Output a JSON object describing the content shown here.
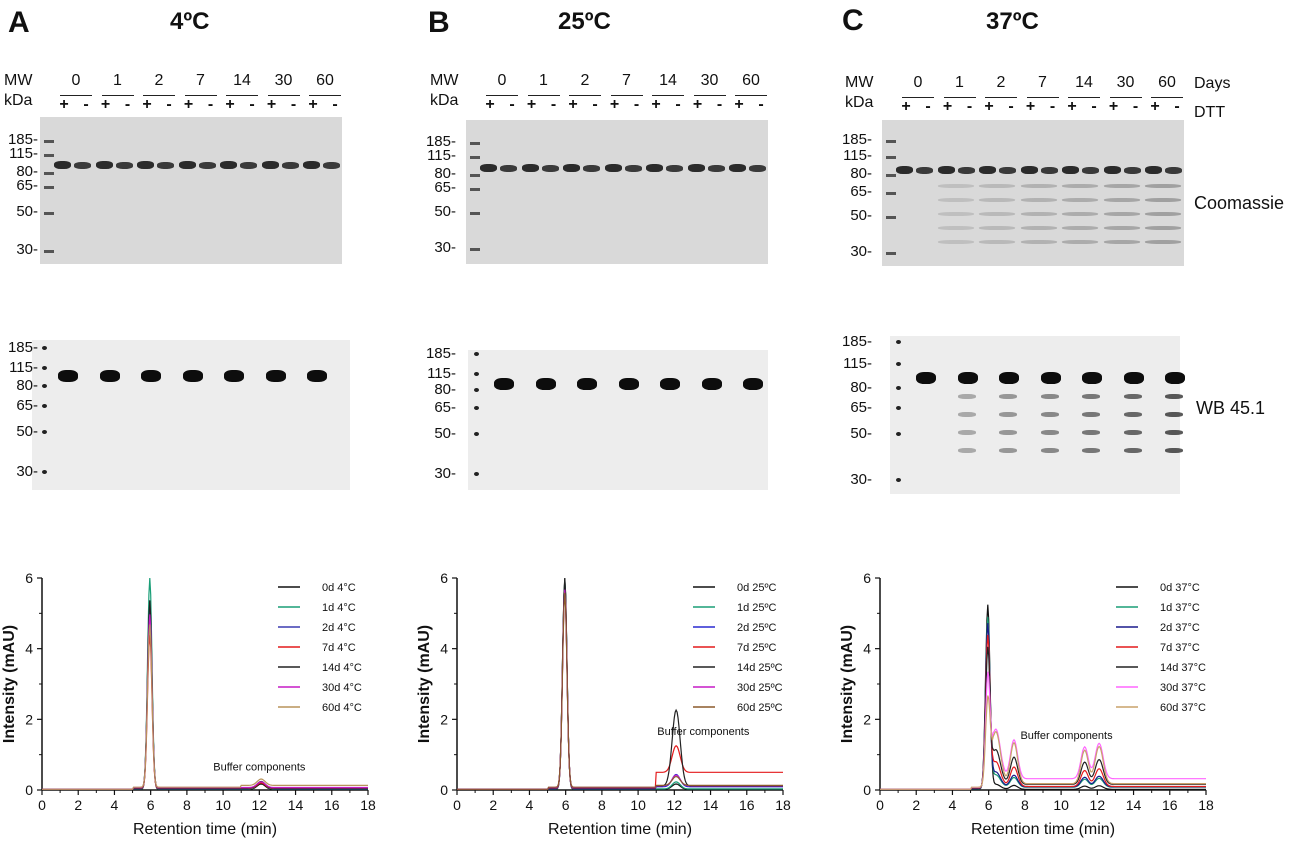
{
  "panels": [
    {
      "letter": "A",
      "temp": "4ºC",
      "mw_top": [
        "185-",
        "115-",
        "80-",
        "65-",
        "50-",
        "30-"
      ],
      "mw_wb": [
        "185-",
        "115-",
        "80-",
        "65-",
        "50-",
        "30-"
      ],
      "chart": {
        "type": "line",
        "title": "",
        "xlabel": "Retention time (min)",
        "ylabel": "Intensity (mAU)",
        "xlim": [
          0,
          18
        ],
        "ylim": [
          0,
          6
        ],
        "xticks": [
          "0",
          "2",
          "4",
          "6",
          "8",
          "10",
          "12",
          "14",
          "16",
          "18"
        ],
        "yticks": [
          "0",
          "2",
          "4",
          "6"
        ],
        "annotation": "Buffer components",
        "series": [
          {
            "name": "0d 4°C",
            "color": "#111111",
            "peak": 5.35,
            "late": 0.15,
            "tail": 0.0
          },
          {
            "name": "1d 4°C",
            "color": "#1a9e77",
            "peak": 6.0,
            "late": 0.2,
            "tail": 0.0
          },
          {
            "name": "2d 4°C",
            "color": "#3b3bb0",
            "peak": 5.2,
            "late": 0.2,
            "tail": 0.0
          },
          {
            "name": "7d 4°C",
            "color": "#e41a1c",
            "peak": 4.35,
            "late": 0.15,
            "tail": 0.0
          },
          {
            "name": "14d 4°C",
            "color": "#222222",
            "peak": 5.3,
            "late": 0.18,
            "tail": 0.0
          },
          {
            "name": "30d 4°C",
            "color": "#c51bc5",
            "peak": 4.9,
            "late": 0.16,
            "tail": 0.0
          },
          {
            "name": "60d 4°C",
            "color": "#b8935a",
            "peak": 4.6,
            "late": 0.18,
            "tail": 0.05
          }
        ]
      }
    },
    {
      "letter": "B",
      "temp": "25ºC",
      "mw_top": [
        "185-",
        "115-",
        "80-",
        "65-",
        "50-",
        "30-"
      ],
      "mw_wb": [
        "185-",
        "115-",
        "80-",
        "65-",
        "50-",
        "30-"
      ],
      "chart": {
        "type": "line",
        "title": "",
        "xlabel": "Retention time (min)",
        "ylabel": "Intensity (mAU)",
        "xlim": [
          0,
          18
        ],
        "ylim": [
          0,
          6
        ],
        "xticks": [
          "0",
          "2",
          "4",
          "6",
          "8",
          "10",
          "12",
          "14",
          "16",
          "18"
        ],
        "yticks": [
          "0",
          "2",
          "4",
          "6"
        ],
        "annotation": "Buffer components",
        "series": [
          {
            "name": "0d 25ºC",
            "color": "#111111",
            "peak": 6.0,
            "late": 0.15,
            "tail": 0.0
          },
          {
            "name": "1d 25ºC",
            "color": "#1a9e77",
            "peak": 5.9,
            "late": 0.2,
            "tail": 0.0
          },
          {
            "name": "2d 25ºC",
            "color": "#2a2ad0",
            "peak": 5.8,
            "late": 0.35,
            "tail": 0.05
          },
          {
            "name": "7d 25ºC",
            "color": "#e41a1c",
            "peak": 5.7,
            "late": 0.75,
            "tail": 0.45
          },
          {
            "name": "14d 25ºC",
            "color": "#222222",
            "peak": 5.9,
            "late": 2.15,
            "tail": 0.05
          },
          {
            "name": "30d 25ºC",
            "color": "#c51bc5",
            "peak": 5.6,
            "late": 0.3,
            "tail": 0.05
          },
          {
            "name": "60d 25ºC",
            "color": "#8b5a2b",
            "peak": 5.5,
            "late": 0.25,
            "tail": 0.05
          }
        ]
      }
    },
    {
      "letter": "C",
      "temp": "37ºC",
      "mw_top": [
        "185-",
        "115-",
        "80-",
        "65-",
        "50-",
        "30-"
      ],
      "mw_wb": [
        "185-",
        "115-",
        "80-",
        "65-",
        "50-",
        "30-"
      ],
      "chart": {
        "type": "line",
        "title": "",
        "xlabel": "Retention time (min)",
        "ylabel": "Intensity (mAU)",
        "xlim": [
          0,
          18
        ],
        "ylim": [
          0,
          6
        ],
        "xticks": [
          "0",
          "2",
          "4",
          "6",
          "8",
          "10",
          "12",
          "14",
          "16",
          "18"
        ],
        "yticks": [
          "0",
          "2",
          "4",
          "6"
        ],
        "annotation": "Buffer components",
        "series": [
          {
            "name": "0d 37°C",
            "color": "#111111",
            "peak": 5.2,
            "late": 0.1,
            "tail": 0.0
          },
          {
            "name": "1d 37°C",
            "color": "#1a9e77",
            "peak": 4.8,
            "late": 0.25,
            "tail": 0.05
          },
          {
            "name": "2d 37°C",
            "color": "#1a1a8c",
            "peak": 4.6,
            "late": 0.3,
            "tail": 0.05
          },
          {
            "name": "7d 37°C",
            "color": "#e41a1c",
            "peak": 4.2,
            "late": 0.5,
            "tail": 0.05
          },
          {
            "name": "14d 37°C",
            "color": "#222222",
            "peak": 3.8,
            "late": 0.7,
            "tail": 0.1
          },
          {
            "name": "30d 37°C",
            "color": "#ff66ff",
            "peak": 3.0,
            "late": 1.0,
            "tail": 0.25
          },
          {
            "name": "60d 37°C",
            "color": "#c9a26a",
            "peak": 2.3,
            "late": 1.05,
            "tail": 0.1
          }
        ]
      }
    }
  ],
  "common": {
    "mw_label": "MW",
    "kda_label": "kDa",
    "days": [
      "0",
      "1",
      "2",
      "7",
      "14",
      "30",
      "60"
    ],
    "plus": "+",
    "minus": "-",
    "days_label": "Days",
    "dtt_label": "DTT",
    "coomassie_label": "Coomassie",
    "wb_label": "WB 45.1"
  }
}
